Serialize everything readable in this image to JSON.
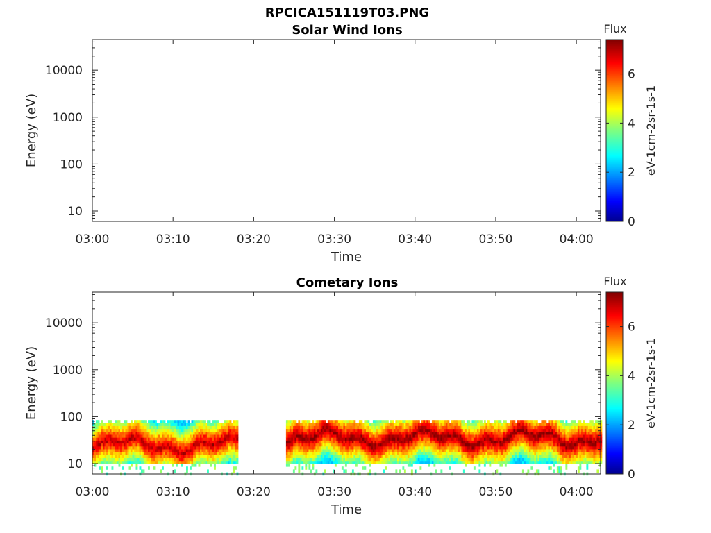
{
  "figure_title": "RPCICA151119T03.PNG",
  "chart_data": [
    {
      "type": "heatmap",
      "title": "Solar Wind Ions",
      "xlabel": "Time",
      "ylabel": "Energy (eV)",
      "x_range": [
        "03:00",
        "04:03"
      ],
      "x_ticks": [
        "03:00",
        "03:10",
        "03:20",
        "03:30",
        "03:40",
        "03:50",
        "04:00"
      ],
      "y_scale": "log",
      "y_range": [
        6,
        45000
      ],
      "y_ticks": [
        10,
        100,
        1000,
        10000
      ],
      "y_tick_labels": [
        "10",
        "100",
        "1000",
        "10000"
      ],
      "colorbar": {
        "title": "Flux",
        "label": "eV-1cm-2sr-1s-1",
        "range": [
          0,
          7.4
        ],
        "ticks": [
          "0",
          "2",
          "4",
          "6"
        ],
        "colormap": "jet"
      },
      "data_segments": []
    },
    {
      "type": "heatmap",
      "title": "Cometary Ions",
      "xlabel": "Time",
      "ylabel": "Energy (eV)",
      "x_range": [
        "03:00",
        "04:03"
      ],
      "x_ticks": [
        "03:00",
        "03:10",
        "03:20",
        "03:30",
        "03:40",
        "03:50",
        "04:00"
      ],
      "y_scale": "log",
      "y_range": [
        6,
        45000
      ],
      "y_ticks": [
        10,
        100,
        1000,
        10000
      ],
      "y_tick_labels": [
        "10",
        "100",
        "1000",
        "10000"
      ],
      "colorbar": {
        "title": "Flux",
        "label": "eV-1cm-2sr-1s-1",
        "range": [
          0,
          7.4
        ],
        "ticks": [
          "0",
          "2",
          "4",
          "6"
        ],
        "colormap": "jet"
      },
      "data_segments": [
        {
          "start": "03:00",
          "end": "03:18",
          "energy_min_eV": 10,
          "energy_max_eV": 85,
          "peak_energy_eV": 25,
          "peak_flux": 7
        },
        {
          "start": "03:24",
          "end": "04:03",
          "energy_min_eV": 10,
          "energy_max_eV": 85,
          "peak_energy_eV": 35,
          "peak_flux": 7.3
        }
      ],
      "data_gap": [
        "03:18",
        "03:24"
      ]
    }
  ]
}
